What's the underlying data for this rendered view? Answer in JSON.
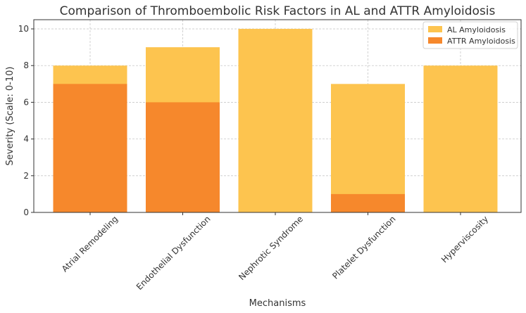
{
  "chart_data": {
    "type": "bar",
    "title": "Comparison of Thromboembolic Risk Factors in AL and ATTR Amyloidosis",
    "xlabel": "Mechanisms",
    "ylabel": "Severity (Scale: 0-10)",
    "ylim": [
      0,
      10.5
    ],
    "yticks": [
      "0",
      "2",
      "4",
      "6",
      "8",
      "10"
    ],
    "categories": [
      "Atrial Remodeling",
      "Endothelial Dysfunction",
      "Nephrotic Syndrome",
      "Platelet Dysfunction",
      "Hyperviscosity"
    ],
    "series": [
      {
        "name": "AL Amyloidosis",
        "values": [
          8,
          9,
          10,
          7,
          8
        ],
        "color": "#fdc44f"
      },
      {
        "name": "ATTR Amyloidosis",
        "values": [
          7,
          6,
          0,
          1,
          0
        ],
        "color": "#f6882c"
      }
    ],
    "grid": true,
    "legend_position": "top-right"
  }
}
